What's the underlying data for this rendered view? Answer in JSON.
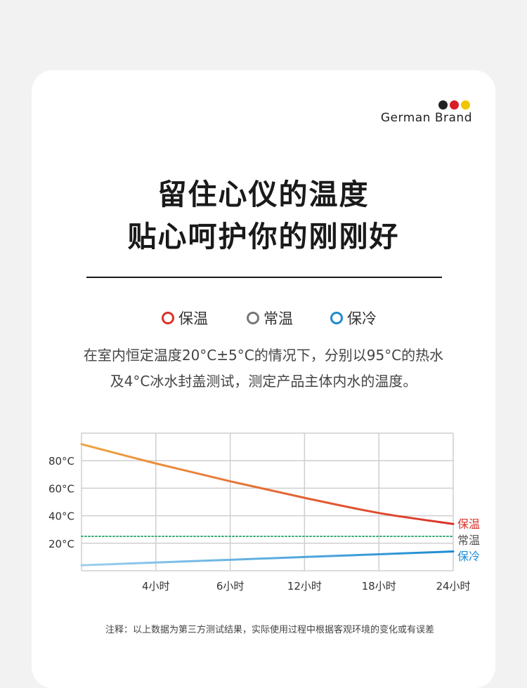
{
  "brand": {
    "name": "German Brand",
    "dot_colors": [
      "#222222",
      "#d71f26",
      "#f3c400"
    ]
  },
  "headline": {
    "line1": "留住心仪的温度",
    "line2": "贴心呵护你的刚刚好"
  },
  "legend": [
    {
      "label": "保温",
      "color": "#d9322a"
    },
    {
      "label": "常温",
      "color": "#777777"
    },
    {
      "label": "保冷",
      "color": "#1d8bd1"
    }
  ],
  "description": {
    "line1": "在室内恒定温度20°C±5°C的情况下，分别以95°C的热水",
    "line2": "及4°C冰水封盖测试，测定产品主体内水的温度。"
  },
  "chart_data": {
    "type": "line",
    "x_ticks": [
      "4小时",
      "6小时",
      "12小时",
      "18小时",
      "24小时"
    ],
    "x": [
      0,
      1,
      2,
      3,
      4,
      5
    ],
    "y_ticks": [
      "80°C",
      "60°C",
      "40°C",
      "20°C"
    ],
    "y_tick_values": [
      80,
      60,
      40,
      20
    ],
    "ylim": [
      0,
      100
    ],
    "grid": true,
    "series": [
      {
        "name": "保温",
        "color_start": "#f0a540",
        "color_end": "#d9322a",
        "style": "solid",
        "values": [
          92,
          78,
          65,
          53,
          42,
          34
        ]
      },
      {
        "name": "常温",
        "color": "#3aaa78",
        "style": "dotted",
        "values": [
          25,
          25,
          25,
          25,
          25,
          25
        ]
      },
      {
        "name": "保冷",
        "color_start": "#9dd0ee",
        "color_end": "#1d8bd1",
        "style": "solid",
        "values": [
          4,
          6,
          8,
          10,
          12,
          14
        ]
      }
    ],
    "series_label_colors": [
      "#d9322a",
      "#555555",
      "#1d8bd1"
    ]
  },
  "note": "注释：以上数据为第三方测试结果，实际使用过程中根据客观环境的变化或有误差"
}
